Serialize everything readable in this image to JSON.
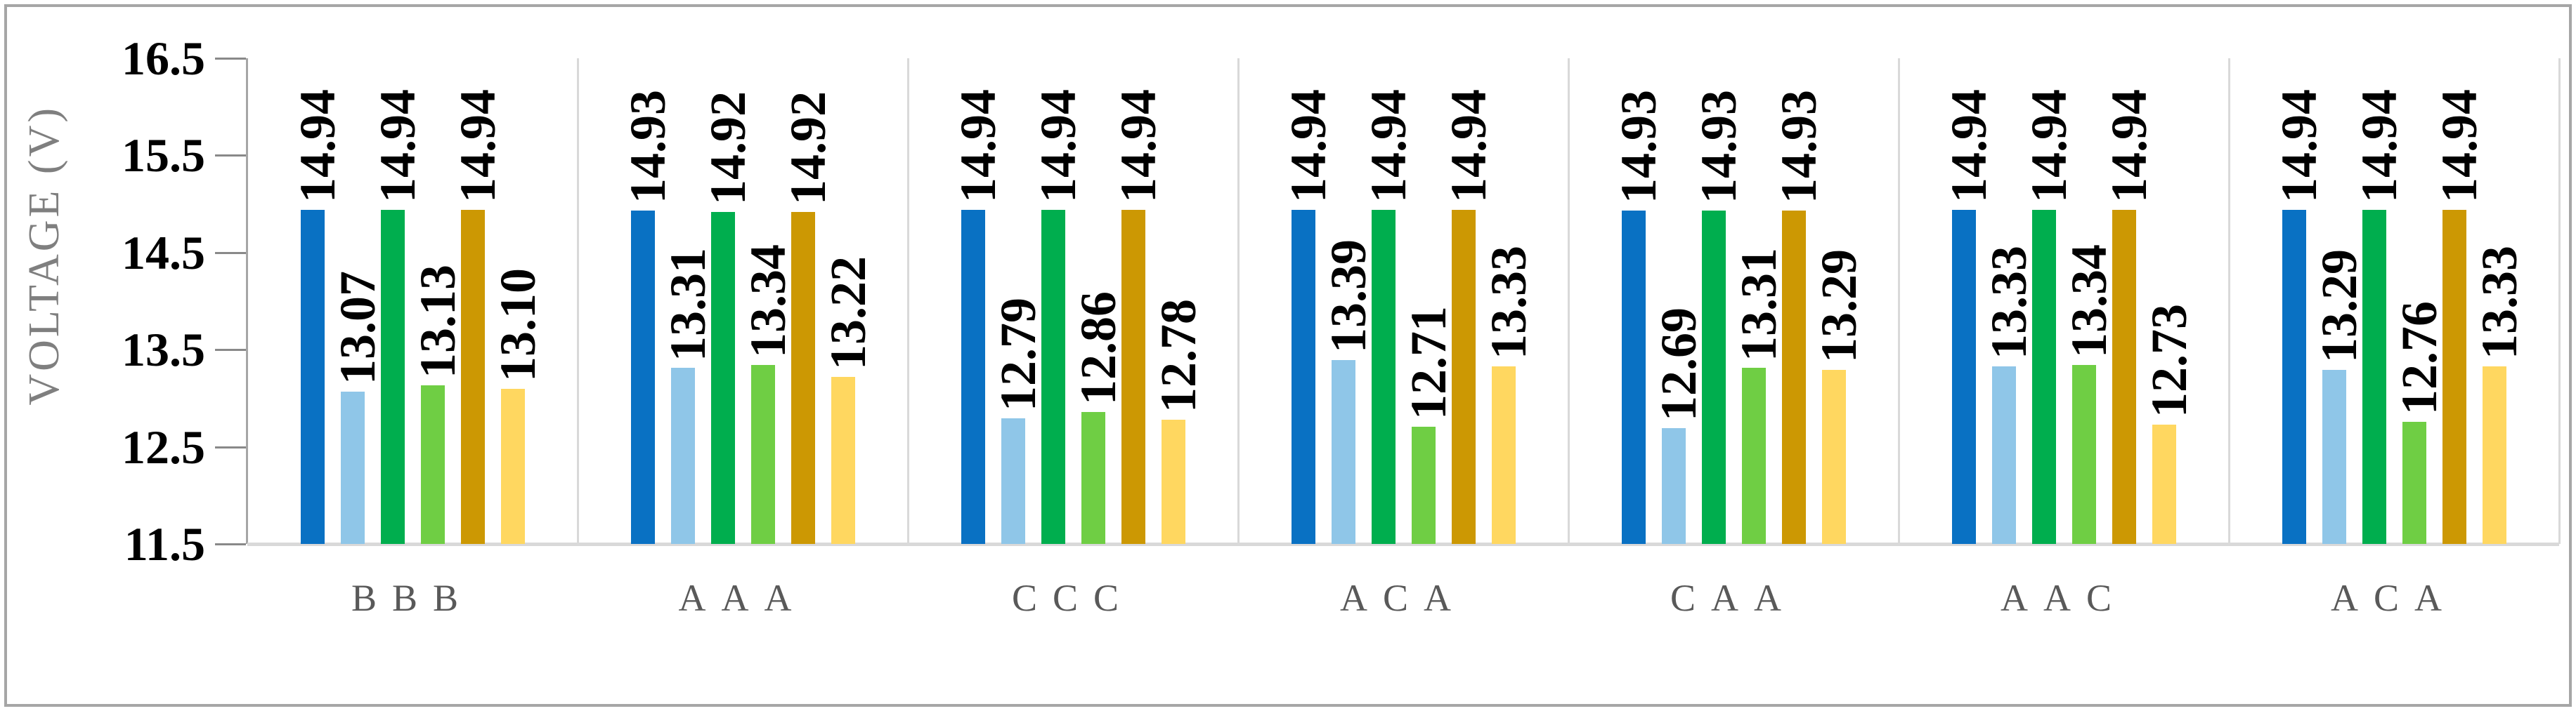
{
  "chart_data": {
    "type": "bar",
    "title": "",
    "xlabel": "",
    "ylabel": "VOLTAGE (V)",
    "categories": [
      "BBB",
      "AAA",
      "CCC",
      "ACA",
      "CAA",
      "AAC",
      "ACA"
    ],
    "series": [
      {
        "name": "series-1-dark-blue",
        "color": "#0971C3",
        "values": [
          14.94,
          14.93,
          14.94,
          14.94,
          14.93,
          14.94,
          14.94
        ]
      },
      {
        "name": "series-2-light-blue",
        "color": "#8FC6E8",
        "values": [
          13.07,
          13.31,
          12.79,
          13.39,
          12.69,
          13.33,
          13.29
        ]
      },
      {
        "name": "series-3-green",
        "color": "#00AE4E",
        "values": [
          14.94,
          14.92,
          14.94,
          14.94,
          14.93,
          14.94,
          14.94
        ]
      },
      {
        "name": "series-4-light-green",
        "color": "#6FCE44",
        "values": [
          13.13,
          13.34,
          12.86,
          12.71,
          13.31,
          13.34,
          12.76
        ]
      },
      {
        "name": "series-5-gold",
        "color": "#CC9803",
        "values": [
          14.94,
          14.92,
          14.94,
          14.94,
          14.93,
          14.94,
          14.94
        ]
      },
      {
        "name": "series-6-light-yellow",
        "color": "#FFD760",
        "values": [
          13.1,
          13.22,
          12.78,
          13.33,
          13.29,
          12.73,
          13.33
        ]
      }
    ],
    "y_ticks": [
      "16.5",
      "15.5",
      "14.5",
      "13.5",
      "12.5",
      "11.5"
    ],
    "ylim": [
      11.5,
      16.5
    ],
    "data_labels": "rotated-90-above-bars",
    "legend": "none",
    "grid": "vertical-category-separators"
  },
  "palette": {
    "background": "#FFFFFF",
    "border": "#A6A6A6",
    "axis_line": "#A6A6A6",
    "tick_mark": "#898989",
    "baseline": "#D9D9D9",
    "separator": "#D9D9D9",
    "tick_label_color": "#000000",
    "data_label_color": "#000000",
    "category_label_color": "#595959",
    "ylabel_color": "#7F7F7F"
  }
}
